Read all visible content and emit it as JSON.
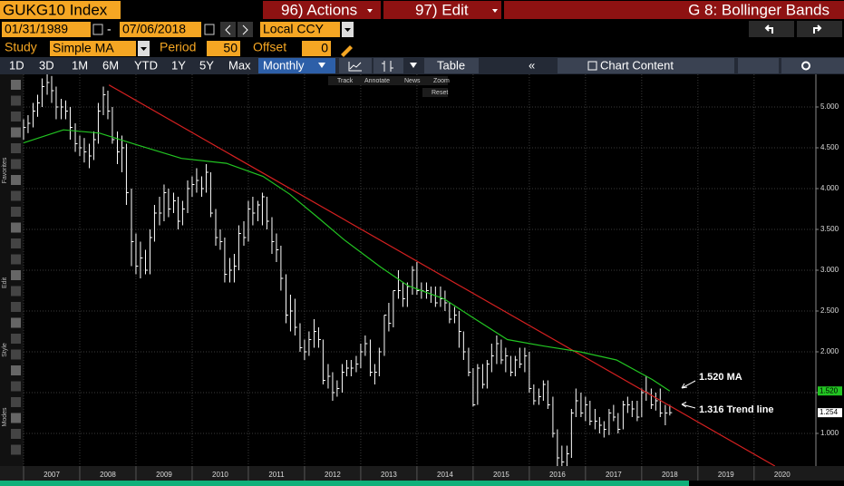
{
  "header": {
    "ticker": "GUKG10 Index",
    "actions": "96) Actions",
    "edit": "97) Edit",
    "title": "G 8: Bollinger Bands",
    "start_date": "01/31/1989",
    "date_sep": "-",
    "end_date": "07/06/2018",
    "currency": "Local CCY",
    "study_label": "Study",
    "study": "Simple MA",
    "period_label": "Period",
    "period": "50",
    "offset_label": "Offset",
    "offset": "0"
  },
  "toolbar": {
    "ranges": [
      "1D",
      "3D",
      "1M",
      "6M",
      "YTD",
      "1Y",
      "5Y",
      "Max"
    ],
    "frequency": "Monthly",
    "table": "Table",
    "chart_content": "Chart Content",
    "tools": [
      "Track",
      "Annotate",
      "News",
      "Zoom"
    ],
    "reset": "Reset",
    "side": [
      "Favorites",
      "Edit",
      "Style",
      "Modes"
    ]
  },
  "chart_data": {
    "type": "ohlc",
    "color": "#ffffff",
    "x": [
      2007.0,
      2007.08,
      2007.17,
      2007.25,
      2007.33,
      2007.42,
      2007.5,
      2007.58,
      2007.67,
      2007.75,
      2007.83,
      2007.92,
      2008.0,
      2008.08,
      2008.17,
      2008.25,
      2008.33,
      2008.42,
      2008.5,
      2008.58,
      2008.67,
      2008.75,
      2008.83,
      2008.92,
      2009.0,
      2009.08,
      2009.17,
      2009.25,
      2009.33,
      2009.42,
      2009.5,
      2009.58,
      2009.67,
      2009.75,
      2009.83,
      2009.92,
      2010.0,
      2010.08,
      2010.17,
      2010.25,
      2010.33,
      2010.42,
      2010.5,
      2010.58,
      2010.67,
      2010.75,
      2010.83,
      2010.92,
      2011.0,
      2011.08,
      2011.17,
      2011.25,
      2011.33,
      2011.42,
      2011.5,
      2011.58,
      2011.67,
      2011.75,
      2011.83,
      2011.92,
      2012.0,
      2012.08,
      2012.17,
      2012.25,
      2012.33,
      2012.42,
      2012.5,
      2012.58,
      2012.67,
      2012.75,
      2012.83,
      2012.92,
      2013.0,
      2013.08,
      2013.17,
      2013.25,
      2013.33,
      2013.42,
      2013.5,
      2013.58,
      2013.67,
      2013.75,
      2013.83,
      2013.92,
      2014.0,
      2014.08,
      2014.17,
      2014.25,
      2014.33,
      2014.42,
      2014.5,
      2014.58,
      2014.67,
      2014.75,
      2014.83,
      2014.92,
      2015.0,
      2015.08,
      2015.17,
      2015.25,
      2015.33,
      2015.42,
      2015.5,
      2015.58,
      2015.67,
      2015.75,
      2015.83,
      2015.92,
      2016.0,
      2016.08,
      2016.17,
      2016.25,
      2016.33,
      2016.42,
      2016.5,
      2016.58,
      2016.67,
      2016.75,
      2016.83,
      2016.92,
      2017.0,
      2017.08,
      2017.17,
      2017.25,
      2017.33,
      2017.42,
      2017.5,
      2017.58,
      2017.67,
      2017.75,
      2017.83,
      2017.92,
      2018.0,
      2018.08,
      2018.17,
      2018.25,
      2018.33,
      2018.42,
      2018.5
    ],
    "high": [
      4.85,
      4.9,
      5.05,
      5.15,
      5.35,
      5.4,
      5.38,
      5.25,
      5.1,
      5.08,
      5.0,
      4.8,
      4.65,
      4.62,
      4.55,
      4.7,
      5.05,
      5.25,
      5.2,
      5.0,
      4.7,
      4.65,
      4.55,
      4.0,
      3.45,
      3.35,
      3.25,
      3.5,
      3.8,
      3.9,
      4.05,
      4.0,
      3.95,
      3.9,
      3.85,
      4.1,
      4.15,
      4.25,
      4.15,
      4.3,
      4.2,
      3.75,
      3.5,
      3.4,
      3.15,
      3.2,
      3.55,
      3.6,
      3.85,
      3.9,
      3.85,
      3.95,
      3.9,
      3.65,
      3.45,
      3.3,
      2.95,
      2.7,
      2.65,
      2.35,
      2.15,
      2.25,
      2.4,
      2.3,
      2.15,
      1.85,
      1.75,
      1.65,
      1.85,
      1.9,
      1.9,
      1.95,
      2.1,
      2.2,
      2.15,
      1.85,
      2.05,
      2.45,
      2.6,
      2.75,
      3.0,
      2.85,
      2.85,
      3.05,
      3.1,
      2.85,
      2.85,
      2.8,
      2.8,
      2.8,
      2.75,
      2.6,
      2.55,
      2.5,
      2.25,
      2.05,
      1.8,
      1.85,
      1.85,
      1.9,
      2.1,
      2.2,
      2.15,
      2.05,
      1.95,
      1.95,
      2.05,
      2.05,
      2.0,
      1.6,
      1.55,
      1.65,
      1.65,
      1.45,
      1.05,
      0.85,
      0.85,
      1.3,
      1.55,
      1.5,
      1.45,
      1.4,
      1.3,
      1.2,
      1.15,
      1.3,
      1.35,
      1.25,
      1.4,
      1.45,
      1.4,
      1.4,
      1.55,
      1.7,
      1.55,
      1.5,
      1.55,
      1.35,
      1.35
    ],
    "low": [
      4.6,
      4.68,
      4.75,
      4.88,
      5.0,
      5.15,
      5.05,
      4.85,
      4.85,
      4.85,
      4.6,
      4.45,
      4.4,
      4.32,
      4.25,
      4.35,
      4.55,
      4.9,
      4.85,
      4.55,
      4.3,
      4.2,
      3.8,
      3.05,
      2.95,
      2.9,
      2.95,
      2.95,
      3.35,
      3.55,
      3.6,
      3.65,
      3.7,
      3.5,
      3.55,
      3.7,
      3.9,
      3.95,
      3.9,
      3.95,
      3.65,
      3.3,
      3.25,
      2.85,
      2.85,
      2.85,
      3.0,
      3.3,
      3.35,
      3.55,
      3.6,
      3.55,
      3.5,
      3.2,
      3.1,
      2.75,
      2.35,
      2.25,
      2.2,
      2.0,
      1.9,
      1.95,
      2.05,
      2.05,
      1.6,
      1.55,
      1.4,
      1.45,
      1.5,
      1.7,
      1.7,
      1.75,
      1.8,
      1.95,
      1.7,
      1.6,
      1.7,
      1.95,
      2.25,
      2.3,
      2.65,
      2.55,
      2.55,
      2.7,
      2.7,
      2.65,
      2.65,
      2.6,
      2.55,
      2.55,
      2.5,
      2.35,
      2.35,
      2.05,
      1.9,
      1.7,
      1.33,
      1.35,
      1.55,
      1.55,
      1.75,
      1.85,
      1.85,
      1.75,
      1.7,
      1.7,
      1.8,
      1.75,
      1.5,
      1.35,
      1.35,
      1.4,
      1.3,
      0.95,
      0.6,
      0.55,
      0.6,
      0.7,
      1.2,
      1.2,
      1.15,
      1.1,
      1.05,
      1.0,
      0.95,
      0.98,
      1.15,
      1.0,
      1.05,
      1.25,
      1.2,
      1.15,
      1.2,
      1.4,
      1.3,
      1.28,
      1.2,
      1.1,
      1.22
    ],
    "close": [
      4.75,
      4.8,
      4.95,
      5.05,
      5.25,
      5.3,
      5.2,
      5.0,
      5.0,
      4.95,
      4.75,
      4.55,
      4.5,
      4.45,
      4.4,
      4.6,
      4.95,
      5.15,
      4.95,
      4.6,
      4.45,
      4.5,
      3.95,
      3.35,
      3.05,
      3.15,
      3.0,
      3.4,
      3.7,
      3.7,
      3.95,
      3.75,
      3.85,
      3.6,
      3.75,
      4.0,
      4.05,
      4.1,
      4.0,
      4.2,
      3.7,
      3.4,
      3.35,
      2.95,
      3.0,
      3.05,
      3.45,
      3.4,
      3.75,
      3.7,
      3.8,
      3.9,
      3.6,
      3.35,
      3.25,
      2.9,
      2.45,
      2.5,
      2.3,
      2.05,
      2.0,
      2.15,
      2.25,
      2.15,
      1.65,
      1.7,
      1.5,
      1.55,
      1.75,
      1.8,
      1.8,
      1.85,
      2.0,
      2.1,
      1.75,
      1.75,
      2.0,
      2.45,
      2.35,
      2.75,
      2.75,
      2.65,
      2.8,
      3.0,
      2.75,
      2.75,
      2.75,
      2.7,
      2.6,
      2.65,
      2.6,
      2.4,
      2.45,
      2.25,
      2.0,
      1.75,
      1.35,
      1.8,
      1.6,
      1.85,
      1.95,
      2.1,
      1.9,
      1.95,
      1.75,
      1.9,
      1.85,
      1.95,
      1.55,
      1.4,
      1.45,
      1.6,
      1.35,
      1.0,
      0.7,
      0.65,
      0.75,
      1.25,
      1.4,
      1.25,
      1.35,
      1.15,
      1.15,
      1.1,
      1.05,
      1.25,
      1.2,
      1.05,
      1.35,
      1.35,
      1.3,
      1.2,
      1.5,
      1.5,
      1.35,
      1.4,
      1.25,
      1.25,
      1.254
    ],
    "ma": {
      "color": "#22c422",
      "x": [
        2007.0,
        2007.71,
        2008.35,
        2009.0,
        2009.81,
        2010.61,
        2011.26,
        2011.74,
        2012.23,
        2012.71,
        2013.35,
        2013.84,
        2014.48,
        2014.97,
        2015.61,
        2016.26,
        2016.9,
        2017.55,
        2018.19,
        2018.5
      ],
      "values": [
        4.56,
        4.72,
        4.68,
        4.54,
        4.37,
        4.31,
        4.15,
        3.93,
        3.65,
        3.37,
        3.04,
        2.81,
        2.65,
        2.43,
        2.15,
        2.07,
        2.0,
        1.9,
        1.66,
        1.52
      ]
    },
    "trend": {
      "color": "#d42020",
      "x": [
        2008.52,
        2020.37
      ],
      "values": [
        5.27,
        0.6
      ]
    },
    "xlim": [
      2007,
      2021.1
    ],
    "xticks": [
      2007,
      2008,
      2009,
      2010,
      2011,
      2012,
      2013,
      2014,
      2015,
      2016,
      2017,
      2018,
      2019,
      2020
    ],
    "ylim": [
      0.6,
      5.4
    ],
    "yticks": [
      {
        "value": 1,
        "label": "1.000"
      },
      {
        "value": 1.5,
        "label": "1.500"
      },
      {
        "value": 2,
        "label": "2.000"
      },
      {
        "value": 2.5,
        "label": "2.500"
      },
      {
        "value": 3,
        "label": "3.000"
      },
      {
        "value": 3.5,
        "label": "3.500"
      },
      {
        "value": 4,
        "label": "4.000"
      },
      {
        "value": 4.5,
        "label": "4.500"
      },
      {
        "value": 5,
        "label": "5.000"
      }
    ],
    "grid": true,
    "price_tags": [
      {
        "value": 1.52,
        "label": "1.520",
        "color": "#22c422"
      },
      {
        "value": 1.254,
        "label": "1.254",
        "color": "#ffffff"
      }
    ],
    "annotations": [
      "1.520 MA",
      "1.316 Trend line"
    ]
  }
}
